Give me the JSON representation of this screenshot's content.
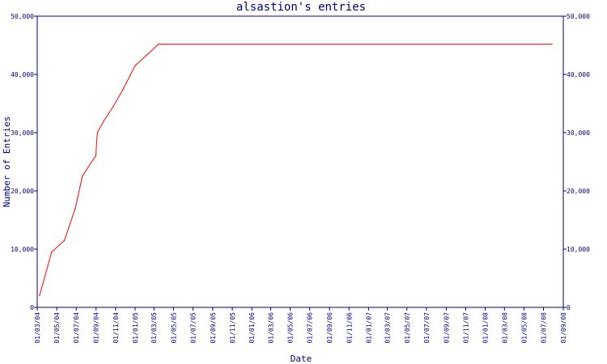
{
  "chart_data": {
    "type": "line",
    "title": "alsastion's entries",
    "xlabel": "Date",
    "ylabel": "Number of Entries",
    "ylim": [
      0,
      50000
    ],
    "yticks": [
      {
        "value": 0,
        "label": "0"
      },
      {
        "value": 10000,
        "label": "10,000"
      },
      {
        "value": 20000,
        "label": "20,000"
      },
      {
        "value": 30000,
        "label": "30,000"
      },
      {
        "value": 40000,
        "label": "40,000"
      },
      {
        "value": 50000,
        "label": "50,000"
      }
    ],
    "xlim": [
      "2004-03-01",
      "2008-09-01"
    ],
    "xticks": [
      {
        "date": "2004-03-01",
        "label": "01/03/04"
      },
      {
        "date": "2004-05-01",
        "label": "01/05/04"
      },
      {
        "date": "2004-07-01",
        "label": "01/07/04"
      },
      {
        "date": "2004-09-01",
        "label": "01/09/04"
      },
      {
        "date": "2004-11-01",
        "label": "01/11/04"
      },
      {
        "date": "2005-01-01",
        "label": "01/01/05"
      },
      {
        "date": "2005-03-01",
        "label": "01/03/05"
      },
      {
        "date": "2005-05-01",
        "label": "01/05/05"
      },
      {
        "date": "2005-07-01",
        "label": "01/07/05"
      },
      {
        "date": "2005-09-01",
        "label": "01/09/05"
      },
      {
        "date": "2005-11-01",
        "label": "01/11/05"
      },
      {
        "date": "2006-01-01",
        "label": "01/01/06"
      },
      {
        "date": "2006-03-01",
        "label": "01/03/06"
      },
      {
        "date": "2006-05-01",
        "label": "01/05/06"
      },
      {
        "date": "2006-07-01",
        "label": "01/07/06"
      },
      {
        "date": "2006-09-01",
        "label": "01/09/06"
      },
      {
        "date": "2006-11-01",
        "label": "01/11/06"
      },
      {
        "date": "2007-01-01",
        "label": "01/01/07"
      },
      {
        "date": "2007-03-01",
        "label": "01/03/07"
      },
      {
        "date": "2007-05-01",
        "label": "01/05/07"
      },
      {
        "date": "2007-07-01",
        "label": "01/07/07"
      },
      {
        "date": "2007-09-01",
        "label": "01/09/07"
      },
      {
        "date": "2007-11-01",
        "label": "01/11/07"
      },
      {
        "date": "2008-01-01",
        "label": "01/01/08"
      },
      {
        "date": "2008-03-01",
        "label": "01/03/08"
      },
      {
        "date": "2008-05-01",
        "label": "01/05/08"
      },
      {
        "date": "2008-07-01",
        "label": "01/07/08"
      },
      {
        "date": "2008-09-01",
        "label": "01/09/08"
      }
    ],
    "grid": false,
    "series": [
      {
        "color": "#ff0000",
        "points": [
          {
            "x": "2004-03-08",
            "y": 2000
          },
          {
            "x": "2004-04-15",
            "y": 9500
          },
          {
            "x": "2004-05-25",
            "y": 11500
          },
          {
            "x": "2004-06-28",
            "y": 17000
          },
          {
            "x": "2004-07-20",
            "y": 22500
          },
          {
            "x": "2004-08-18",
            "y": 25000
          },
          {
            "x": "2004-08-31",
            "y": 26000
          },
          {
            "x": "2004-09-05",
            "y": 30000
          },
          {
            "x": "2004-09-25",
            "y": 32000
          },
          {
            "x": "2004-10-25",
            "y": 34500
          },
          {
            "x": "2004-11-25",
            "y": 37500
          },
          {
            "x": "2005-01-01",
            "y": 41500
          },
          {
            "x": "2005-02-10",
            "y": 43500
          },
          {
            "x": "2005-03-15",
            "y": 45200
          },
          {
            "x": "2008-07-28",
            "y": 45200
          }
        ]
      }
    ]
  },
  "colors": {
    "axis": "#000080",
    "text": "#000080",
    "line": "#ff0000",
    "background": "#ffffff"
  }
}
